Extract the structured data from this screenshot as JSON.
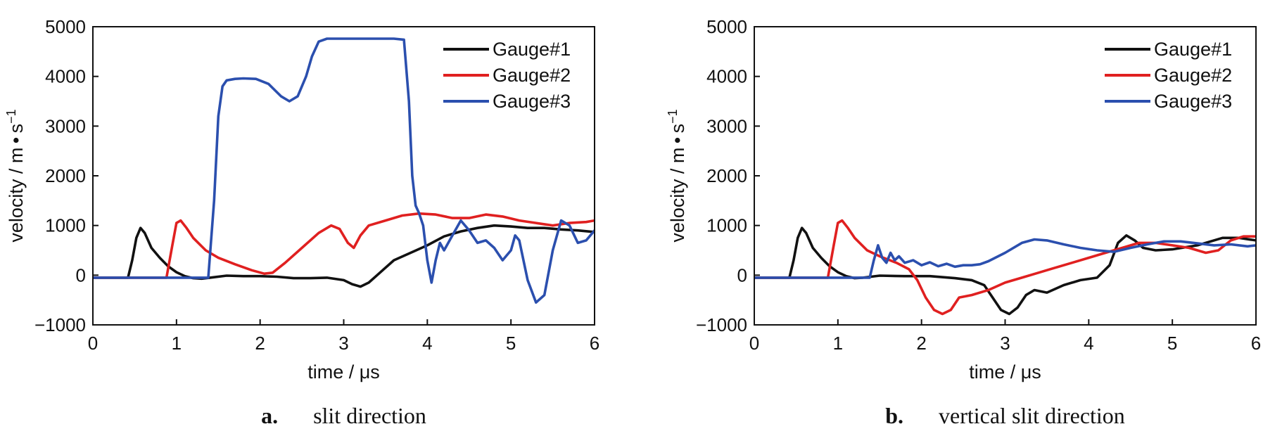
{
  "chart_data": [
    {
      "type": "line",
      "panel_letter": "a.",
      "caption": "slit direction",
      "xlabel": "time / μs",
      "ylabel": "velocity / m • s",
      "ylabel_exponent": "−1",
      "xlim": [
        0,
        6
      ],
      "ylim": [
        -1000,
        5000
      ],
      "xticks": [
        0,
        1,
        2,
        3,
        4,
        5,
        6
      ],
      "yticks": [
        -1000,
        0,
        1000,
        2000,
        3000,
        4000,
        5000
      ],
      "ytick_labels": [
        "−1000",
        "0",
        "1000",
        "2000",
        "3000",
        "4000",
        "5000"
      ],
      "legend_position": "top-right",
      "series": [
        {
          "name": "Gauge#1",
          "color": "#111111",
          "x": [
            0,
            0.42,
            0.47,
            0.52,
            0.57,
            0.62,
            0.7,
            0.8,
            0.9,
            1.0,
            1.1,
            1.2,
            1.3,
            1.4,
            1.6,
            1.8,
            2.0,
            2.2,
            2.4,
            2.6,
            2.8,
            3.0,
            3.1,
            3.2,
            3.3,
            3.4,
            3.5,
            3.6,
            3.8,
            4.0,
            4.2,
            4.4,
            4.6,
            4.8,
            5.0,
            5.2,
            5.4,
            5.6,
            5.8,
            6.0
          ],
          "y": [
            -50,
            -50,
            300,
            750,
            950,
            850,
            550,
            350,
            180,
            60,
            -20,
            -60,
            -70,
            -50,
            -10,
            -20,
            -20,
            -30,
            -60,
            -60,
            -50,
            -100,
            -180,
            -230,
            -150,
            0,
            150,
            300,
            450,
            600,
            780,
            880,
            950,
            1000,
            980,
            950,
            950,
            920,
            900,
            870
          ]
        },
        {
          "name": "Gauge#2",
          "color": "#e02020",
          "x": [
            0,
            0.88,
            0.95,
            1.0,
            1.05,
            1.12,
            1.2,
            1.35,
            1.5,
            1.7,
            1.9,
            2.05,
            2.15,
            2.3,
            2.5,
            2.7,
            2.85,
            2.95,
            3.05,
            3.12,
            3.2,
            3.3,
            3.5,
            3.7,
            3.9,
            4.1,
            4.3,
            4.5,
            4.7,
            4.9,
            5.1,
            5.3,
            5.5,
            5.7,
            5.9,
            6.0
          ],
          "y": [
            -50,
            -50,
            600,
            1050,
            1100,
            950,
            750,
            500,
            350,
            220,
            100,
            30,
            50,
            250,
            550,
            850,
            1000,
            930,
            650,
            550,
            800,
            1000,
            1100,
            1200,
            1240,
            1220,
            1150,
            1150,
            1220,
            1180,
            1100,
            1050,
            1000,
            1050,
            1070,
            1100
          ]
        },
        {
          "name": "Gauge#3",
          "color": "#2b4fae",
          "x": [
            0,
            1.38,
            1.45,
            1.5,
            1.55,
            1.6,
            1.7,
            1.8,
            1.95,
            2.1,
            2.25,
            2.35,
            2.45,
            2.55,
            2.62,
            2.7,
            2.8,
            3.0,
            3.3,
            3.6,
            3.72,
            3.78,
            3.82,
            3.86,
            3.9,
            3.95,
            4.0,
            4.05,
            4.1,
            4.15,
            4.2,
            4.3,
            4.4,
            4.5,
            4.6,
            4.7,
            4.8,
            4.9,
            5.0,
            5.05,
            5.1,
            5.2,
            5.3,
            5.4,
            5.5,
            5.6,
            5.7,
            5.8,
            5.9,
            6.0
          ],
          "y": [
            -50,
            -50,
            1500,
            3200,
            3800,
            3920,
            3950,
            3960,
            3950,
            3850,
            3600,
            3500,
            3600,
            4000,
            4400,
            4700,
            4760,
            4760,
            4760,
            4760,
            4740,
            3500,
            2000,
            1400,
            1250,
            1000,
            300,
            -150,
            300,
            650,
            500,
            800,
            1100,
            900,
            650,
            700,
            550,
            300,
            500,
            800,
            700,
            -100,
            -550,
            -400,
            500,
            1100,
            1000,
            650,
            700,
            900
          ]
        }
      ]
    },
    {
      "type": "line",
      "panel_letter": "b.",
      "caption": "vertical slit direction",
      "xlabel": "time / μs",
      "ylabel": "velocity / m • s",
      "ylabel_exponent": "−1",
      "xlim": [
        0,
        6
      ],
      "ylim": [
        -1000,
        5000
      ],
      "xticks": [
        0,
        1,
        2,
        3,
        4,
        5,
        6
      ],
      "yticks": [
        -1000,
        0,
        1000,
        2000,
        3000,
        4000,
        5000
      ],
      "ytick_labels": [
        "−1000",
        "0",
        "1000",
        "2000",
        "3000",
        "4000",
        "5000"
      ],
      "legend_position": "top-right",
      "series": [
        {
          "name": "Gauge#1",
          "color": "#111111",
          "x": [
            0,
            0.42,
            0.47,
            0.52,
            0.57,
            0.62,
            0.7,
            0.8,
            0.9,
            1.0,
            1.1,
            1.2,
            1.3,
            1.5,
            1.8,
            2.1,
            2.4,
            2.6,
            2.75,
            2.85,
            2.95,
            3.05,
            3.15,
            3.25,
            3.35,
            3.5,
            3.7,
            3.9,
            4.1,
            4.25,
            4.35,
            4.45,
            4.55,
            4.65,
            4.8,
            5.0,
            5.3,
            5.6,
            5.8,
            6.0
          ],
          "y": [
            -50,
            -50,
            300,
            750,
            950,
            850,
            550,
            350,
            180,
            60,
            -20,
            -60,
            -50,
            -10,
            -20,
            -20,
            -60,
            -100,
            -200,
            -450,
            -700,
            -780,
            -650,
            -400,
            -300,
            -350,
            -200,
            -100,
            -50,
            200,
            650,
            800,
            700,
            550,
            500,
            520,
            600,
            750,
            750,
            700
          ]
        },
        {
          "name": "Gauge#2",
          "color": "#e02020",
          "x": [
            0,
            0.88,
            0.95,
            1.0,
            1.05,
            1.12,
            1.2,
            1.35,
            1.5,
            1.7,
            1.85,
            1.95,
            2.05,
            2.15,
            2.25,
            2.35,
            2.45,
            2.6,
            2.8,
            3.0,
            3.2,
            3.4,
            3.6,
            3.8,
            4.0,
            4.2,
            4.4,
            4.6,
            4.8,
            5.0,
            5.2,
            5.4,
            5.55,
            5.7,
            5.85,
            6.0
          ],
          "y": [
            -50,
            -50,
            600,
            1050,
            1100,
            950,
            750,
            500,
            380,
            250,
            120,
            -100,
            -450,
            -700,
            -780,
            -700,
            -450,
            -400,
            -300,
            -150,
            -50,
            50,
            150,
            250,
            350,
            450,
            550,
            650,
            650,
            600,
            550,
            450,
            500,
            700,
            780,
            780
          ]
        },
        {
          "name": "Gauge#3",
          "color": "#2b4fae",
          "x": [
            0,
            1.38,
            1.43,
            1.48,
            1.53,
            1.58,
            1.63,
            1.68,
            1.73,
            1.8,
            1.9,
            2.0,
            2.1,
            2.2,
            2.3,
            2.4,
            2.5,
            2.6,
            2.7,
            2.8,
            3.0,
            3.2,
            3.35,
            3.5,
            3.7,
            3.9,
            4.1,
            4.3,
            4.5,
            4.7,
            4.9,
            5.1,
            5.3,
            5.5,
            5.7,
            5.9,
            6.0
          ],
          "y": [
            -50,
            -50,
            300,
            600,
            350,
            250,
            450,
            300,
            380,
            250,
            300,
            200,
            260,
            180,
            230,
            170,
            200,
            200,
            220,
            280,
            450,
            650,
            720,
            700,
            620,
            550,
            500,
            470,
            550,
            620,
            680,
            680,
            640,
            600,
            620,
            580,
            600
          ]
        }
      ]
    }
  ]
}
